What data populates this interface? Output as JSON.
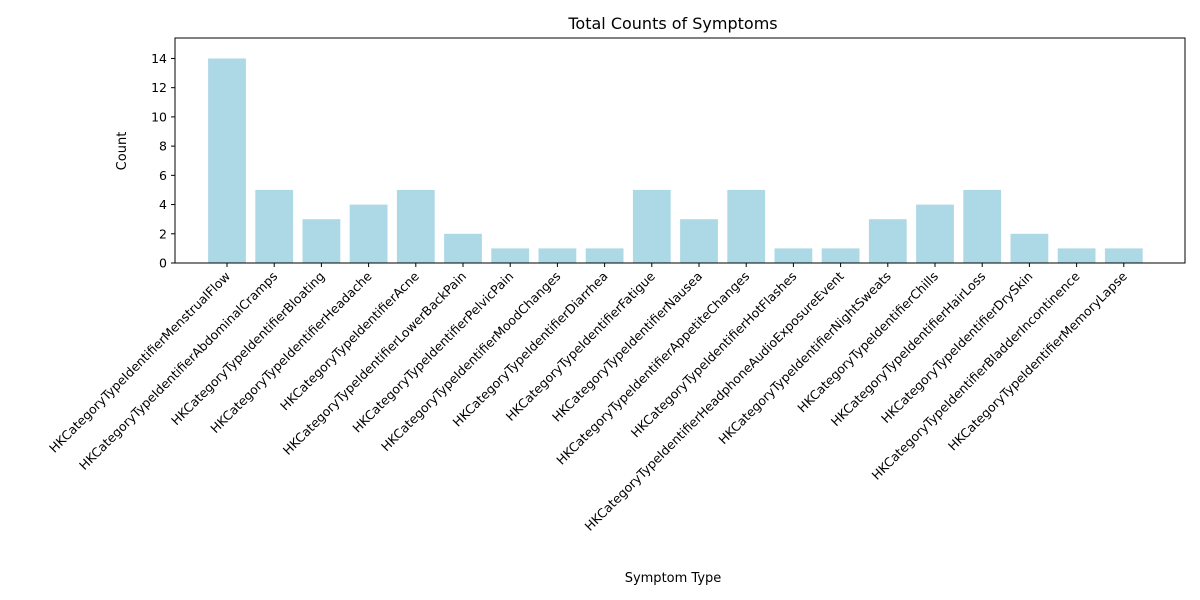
{
  "chart_data": {
    "type": "bar",
    "title": "Total Counts of Symptoms",
    "xlabel": "Symptom Type",
    "ylabel": "Count",
    "ylim": [
      0,
      15.4
    ],
    "yticks": [
      0,
      2,
      4,
      6,
      8,
      10,
      12,
      14
    ],
    "grid": false,
    "bar_color": "#add8e6",
    "categories": [
      "HKCategoryTypeIdentifierMenstrualFlow",
      "HKCategoryTypeIdentifierAbdominalCramps",
      "HKCategoryTypeIdentifierBloating",
      "HKCategoryTypeIdentifierHeadache",
      "HKCategoryTypeIdentifierAcne",
      "HKCategoryTypeIdentifierLowerBackPain",
      "HKCategoryTypeIdentifierPelvicPain",
      "HKCategoryTypeIdentifierMoodChanges",
      "HKCategoryTypeIdentifierDiarrhea",
      "HKCategoryTypeIdentifierFatigue",
      "HKCategoryTypeIdentifierNausea",
      "HKCategoryTypeIdentifierAppetiteChanges",
      "HKCategoryTypeIdentifierHotFlashes",
      "HKCategoryTypeIdentifierHeadphoneAudioExposureEvent",
      "HKCategoryTypeIdentifierNightSweats",
      "HKCategoryTypeIdentifierChills",
      "HKCategoryTypeIdentifierHairLoss",
      "HKCategoryTypeIdentifierDrySkin",
      "HKCategoryTypeIdentifierBladderIncontinence",
      "HKCategoryTypeIdentifierMemoryLapse"
    ],
    "values": [
      14,
      5,
      3,
      4,
      5,
      2,
      1,
      1,
      1,
      5,
      3,
      5,
      1,
      1,
      3,
      4,
      5,
      2,
      1,
      1
    ]
  }
}
